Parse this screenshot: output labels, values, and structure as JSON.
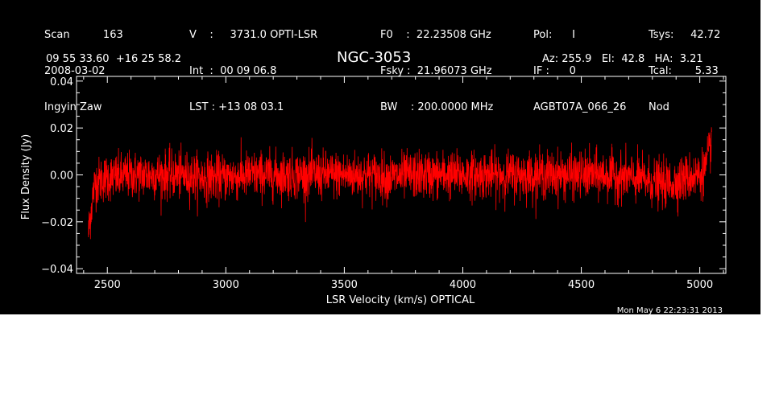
{
  "header": {
    "col1": [
      "Scan          163",
      "2008-03-02",
      "Ingyin Zaw"
    ],
    "col2": [
      "V    :     3731.0 OPTI-LSR",
      "Int  :  00 09 06.8",
      "LST : +13 08 03.1"
    ],
    "col3": [
      "F0    :  22.23508 GHz",
      "Fsky :  21.96073 GHz",
      "BW    : 200.0000 MHz"
    ],
    "col4": [
      "Pol:      I",
      "IF :      0",
      "AGBT07A_066_26"
    ],
    "col5": [
      "Tsys:     42.72",
      "Tcal:       5.33",
      "Nod"
    ],
    "coords": "09 55 33.60  +16 25 58.2",
    "source": "NGC-3053",
    "azel": "Az: 255.9   El:  42.8   HA:  3.21",
    "timestamp": "Mon May  6 22:23:31 2013"
  },
  "colors": {
    "background": "#000000",
    "axes": "#ffffff",
    "series": "#ff0000"
  },
  "chart_data": {
    "type": "line",
    "xlabel": "LSR Velocity (km/s) OPTICAL",
    "ylabel": "Flux Density (Jy)",
    "xlim": [
      2370,
      5110
    ],
    "ylim": [
      -0.042,
      0.042
    ],
    "x_ticks": [
      2500,
      3000,
      3500,
      4000,
      4500,
      5000
    ],
    "x_tick_labels": [
      "2500",
      "3000",
      "3500",
      "4000",
      "4500",
      "5000"
    ],
    "y_ticks": [
      -0.04,
      -0.02,
      0.0,
      0.02,
      0.04
    ],
    "y_tick_labels": [
      "−0.04",
      "−0.02",
      "0.00",
      "0.02",
      "0.04"
    ],
    "grid": false,
    "series": [
      {
        "x": [
          2420,
          2430,
          2440,
          2450,
          2475,
          2500,
          2550,
          2600,
          2700,
          2800,
          2900,
          3000,
          3100,
          3200,
          3300,
          3400,
          3500,
          3600,
          3700,
          3800,
          3900,
          4000,
          4100,
          4200,
          4300,
          4400,
          4500,
          4600,
          4700,
          4800,
          4850,
          4900,
          4950,
          5000,
          5020,
          5030,
          5040,
          5050
        ],
        "y": [
          -0.025,
          -0.016,
          -0.008,
          -0.003,
          -0.002,
          -0.001,
          -0.001,
          0.0,
          0.0,
          0.0,
          -0.001,
          -0.001,
          0.0,
          0.0,
          0.0,
          0.0,
          0.0,
          0.0,
          -0.001,
          0.0,
          0.0,
          0.0,
          0.0,
          0.0,
          0.0,
          0.0,
          0.0,
          0.0,
          -0.001,
          -0.003,
          -0.004,
          -0.003,
          -0.001,
          0.0,
          0.002,
          0.005,
          0.009,
          0.016
        ],
        "noise_rms": 0.005
      }
    ]
  }
}
